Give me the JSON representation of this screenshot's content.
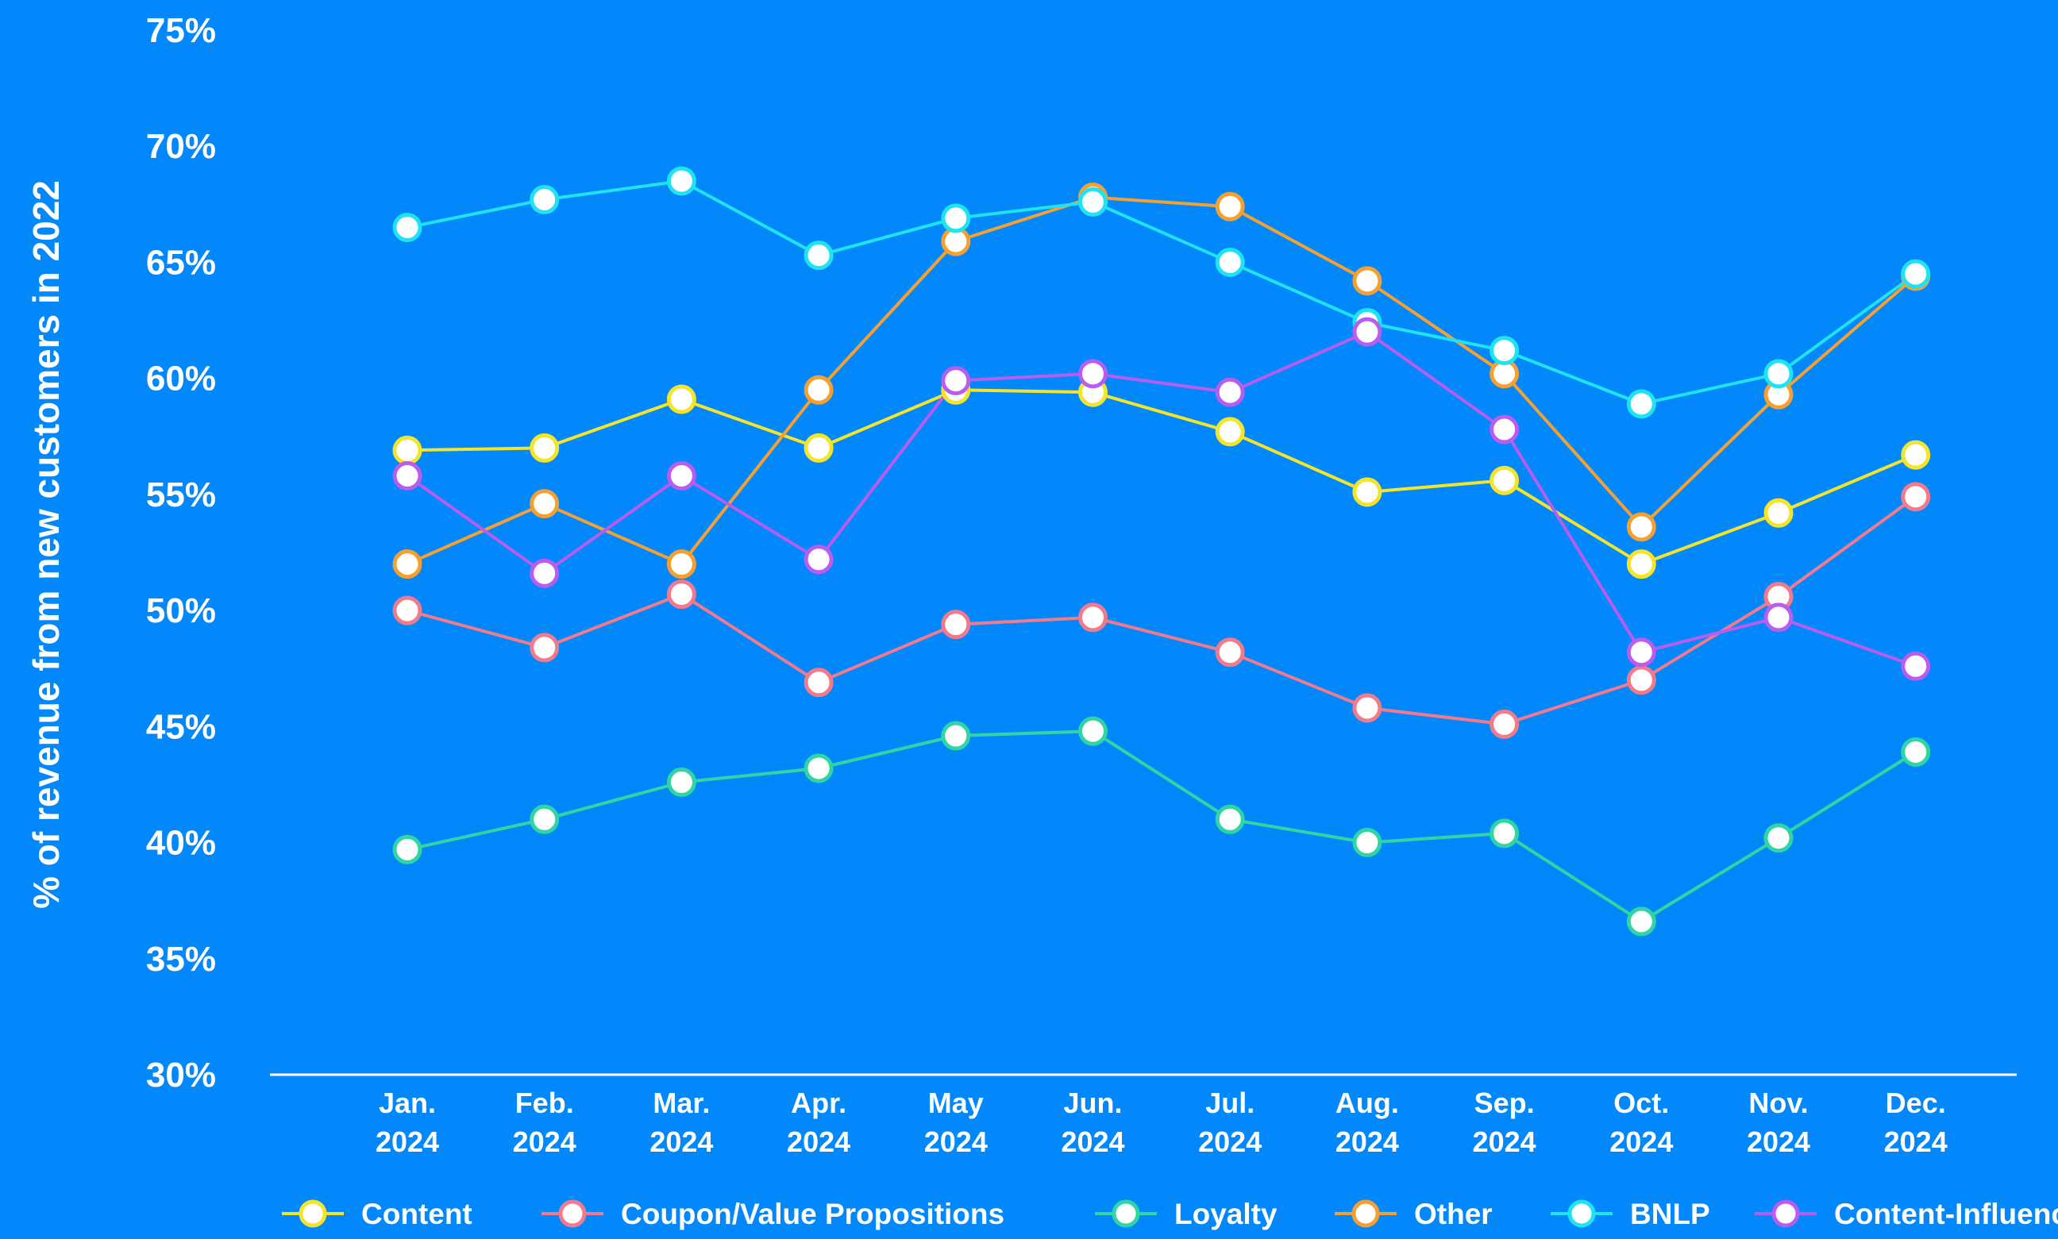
{
  "colors": {
    "background": "#0388fc",
    "axis": "#ffffff",
    "marker_fill": "#ffffff"
  },
  "chart_data": {
    "type": "line",
    "ylabel": "% of revenue from new customers in 2022",
    "xlabel": "",
    "ylim": [
      30,
      75
    ],
    "yticks": [
      "75%",
      "70%",
      "65%",
      "60%",
      "55%",
      "50%",
      "45%",
      "40%",
      "35%",
      "30%"
    ],
    "ytick_values": [
      75,
      70,
      65,
      60,
      55,
      50,
      45,
      40,
      35,
      30
    ],
    "categories": [
      {
        "month": "Jan.",
        "year": "2024"
      },
      {
        "month": "Feb.",
        "year": "2024"
      },
      {
        "month": "Mar.",
        "year": "2024"
      },
      {
        "month": "Apr.",
        "year": "2024"
      },
      {
        "month": "May",
        "year": "2024"
      },
      {
        "month": "Jun.",
        "year": "2024"
      },
      {
        "month": "Jul.",
        "year": "2024"
      },
      {
        "month": "Aug.",
        "year": "2024"
      },
      {
        "month": "Sep.",
        "year": "2024"
      },
      {
        "month": "Oct.",
        "year": "2024"
      },
      {
        "month": "Nov.",
        "year": "2024"
      },
      {
        "month": "Dec.",
        "year": "2024"
      }
    ],
    "grid": false,
    "legend_position": "bottom",
    "series": [
      {
        "name": "Content",
        "color": "#f5e52a",
        "values": [
          56.9,
          57.0,
          59.1,
          57.0,
          59.5,
          59.4,
          57.7,
          55.1,
          55.6,
          52.0,
          54.2,
          56.7
        ]
      },
      {
        "name": "Coupon/Value Propositions",
        "color": "#f27a8c",
        "values": [
          50.0,
          48.4,
          50.7,
          46.9,
          49.4,
          49.7,
          48.2,
          45.8,
          45.1,
          47.0,
          50.6,
          54.9
        ]
      },
      {
        "name": "Loyalty",
        "color": "#2fd6a3",
        "values": [
          39.7,
          41.0,
          42.6,
          43.2,
          44.6,
          44.8,
          41.0,
          40.0,
          40.4,
          36.6,
          40.2,
          43.9
        ]
      },
      {
        "name": "Other",
        "color": "#f5a031",
        "values": [
          52.0,
          54.6,
          52.0,
          59.5,
          65.9,
          67.8,
          67.4,
          64.2,
          60.2,
          53.6,
          59.3,
          64.4
        ]
      },
      {
        "name": "BNLP",
        "color": "#1fe3f0",
        "values": [
          66.5,
          67.7,
          68.5,
          65.3,
          66.9,
          67.6,
          65.0,
          62.4,
          61.2,
          58.9,
          60.2,
          64.5
        ]
      },
      {
        "name": "Content-Influencer",
        "color": "#b95cf0",
        "values": [
          55.8,
          51.6,
          55.8,
          52.2,
          59.9,
          60.2,
          59.4,
          62.0,
          57.8,
          48.2,
          49.7,
          47.6
        ]
      }
    ]
  }
}
